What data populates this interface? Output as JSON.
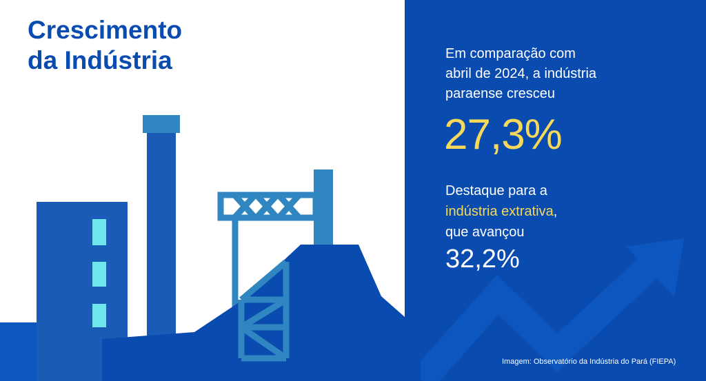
{
  "title": {
    "line1": "Crescimento",
    "line2": "da Indústria"
  },
  "intro": {
    "line1": "Em comparação com",
    "line2": "abril de 2024, a indústria",
    "line3": "paraense cresceu"
  },
  "growth_total": "27,3%",
  "highlight": {
    "line1": "Destaque para a",
    "accent": "indústria extrativa",
    "comma": ",",
    "line3": "que avançou"
  },
  "growth_extractive": "32,2%",
  "credit": "Imagem: Observatório da Indústria do Pará (FIEPA)",
  "colors": {
    "brand_blue": "#0a4bb0",
    "accent_yellow": "#f7d95a",
    "building_blue": "#1a5cb5",
    "structure_teal": "#2f86c0",
    "window_cyan": "#6ee6ec"
  },
  "icons": [
    "factory-building",
    "chimney",
    "crane-gantry",
    "lattice-tower",
    "mining-mound",
    "growth-arrow-icon"
  ]
}
